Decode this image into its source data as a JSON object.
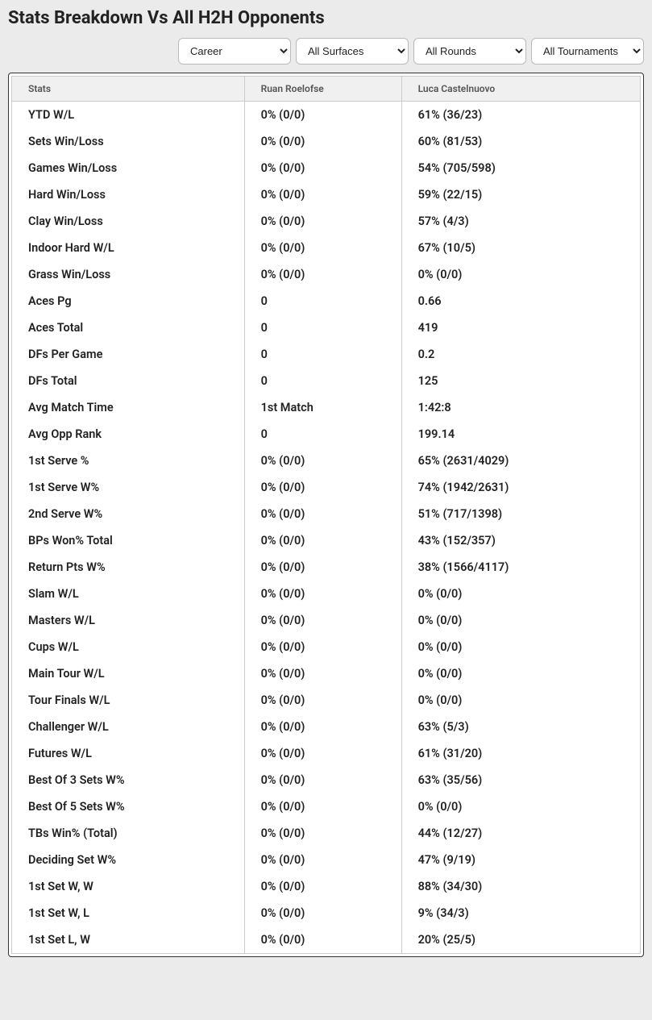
{
  "title": "Stats Breakdown Vs All H2H Opponents",
  "filters": {
    "career": "Career",
    "surfaces": "All Surfaces",
    "rounds": "All Rounds",
    "tournaments": "All Tournaments"
  },
  "table": {
    "headers": {
      "stats": "Stats",
      "player1": "Ruan Roelofse",
      "player2": "Luca Castelnuovo"
    },
    "rows": [
      {
        "stat": "YTD W/L",
        "p1": "0% (0/0)",
        "p2": "61% (36/23)"
      },
      {
        "stat": "Sets Win/Loss",
        "p1": "0% (0/0)",
        "p2": "60% (81/53)"
      },
      {
        "stat": "Games Win/Loss",
        "p1": "0% (0/0)",
        "p2": "54% (705/598)"
      },
      {
        "stat": "Hard Win/Loss",
        "p1": "0% (0/0)",
        "p2": "59% (22/15)"
      },
      {
        "stat": "Clay Win/Loss",
        "p1": "0% (0/0)",
        "p2": "57% (4/3)"
      },
      {
        "stat": "Indoor Hard W/L",
        "p1": "0% (0/0)",
        "p2": "67% (10/5)"
      },
      {
        "stat": "Grass Win/Loss",
        "p1": "0% (0/0)",
        "p2": "0% (0/0)"
      },
      {
        "stat": "Aces Pg",
        "p1": "0",
        "p2": "0.66"
      },
      {
        "stat": "Aces Total",
        "p1": "0",
        "p2": "419"
      },
      {
        "stat": "DFs Per Game",
        "p1": "0",
        "p2": "0.2"
      },
      {
        "stat": "DFs Total",
        "p1": "0",
        "p2": "125"
      },
      {
        "stat": "Avg Match Time",
        "p1": "1st Match",
        "p2": "1:42:8"
      },
      {
        "stat": "Avg Opp Rank",
        "p1": "0",
        "p2": "199.14"
      },
      {
        "stat": "1st Serve %",
        "p1": "0% (0/0)",
        "p2": "65% (2631/4029)"
      },
      {
        "stat": "1st Serve W%",
        "p1": "0% (0/0)",
        "p2": "74% (1942/2631)"
      },
      {
        "stat": "2nd Serve W%",
        "p1": "0% (0/0)",
        "p2": "51% (717/1398)"
      },
      {
        "stat": "BPs Won% Total",
        "p1": "0% (0/0)",
        "p2": "43% (152/357)"
      },
      {
        "stat": "Return Pts W%",
        "p1": "0% (0/0)",
        "p2": "38% (1566/4117)"
      },
      {
        "stat": "Slam W/L",
        "p1": "0% (0/0)",
        "p2": "0% (0/0)"
      },
      {
        "stat": "Masters W/L",
        "p1": "0% (0/0)",
        "p2": "0% (0/0)"
      },
      {
        "stat": "Cups W/L",
        "p1": "0% (0/0)",
        "p2": "0% (0/0)"
      },
      {
        "stat": "Main Tour W/L",
        "p1": "0% (0/0)",
        "p2": "0% (0/0)"
      },
      {
        "stat": "Tour Finals W/L",
        "p1": "0% (0/0)",
        "p2": "0% (0/0)"
      },
      {
        "stat": "Challenger W/L",
        "p1": "0% (0/0)",
        "p2": "63% (5/3)"
      },
      {
        "stat": "Futures W/L",
        "p1": "0% (0/0)",
        "p2": "61% (31/20)"
      },
      {
        "stat": "Best Of 3 Sets W%",
        "p1": "0% (0/0)",
        "p2": "63% (35/56)"
      },
      {
        "stat": "Best Of 5 Sets W%",
        "p1": "0% (0/0)",
        "p2": "0% (0/0)"
      },
      {
        "stat": "TBs Win% (Total)",
        "p1": "0% (0/0)",
        "p2": "44% (12/27)"
      },
      {
        "stat": "Deciding Set W%",
        "p1": "0% (0/0)",
        "p2": "47% (9/19)"
      },
      {
        "stat": "1st Set W, W",
        "p1": "0% (0/0)",
        "p2": "88% (34/30)"
      },
      {
        "stat": "1st Set W, L",
        "p1": "0% (0/0)",
        "p2": "9% (34/3)"
      },
      {
        "stat": "1st Set L, W",
        "p1": "0% (0/0)",
        "p2": "20% (25/5)"
      }
    ]
  }
}
